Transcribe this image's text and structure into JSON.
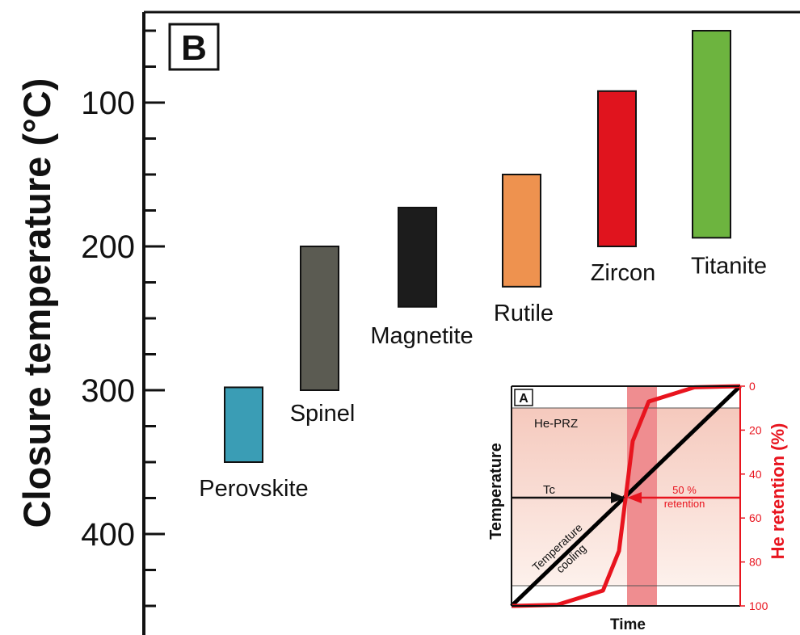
{
  "chart_data": [
    {
      "type": "bar",
      "panel_label": "B",
      "ylabel": "Closure temperature (°C)",
      "y_axis": "inverted",
      "ylim": [
        450,
        40
      ],
      "yticks": [
        100,
        200,
        300,
        400
      ],
      "minor_tick_step": 25,
      "grid": false,
      "series": [
        {
          "name": "Perovskite",
          "low": 298,
          "high": 350,
          "color": "#3a9db5"
        },
        {
          "name": "Spinel",
          "low": 200,
          "high": 300,
          "color": "#5b5b52"
        },
        {
          "name": "Magnetite",
          "low": 173,
          "high": 242,
          "color": "#1c1c1c"
        },
        {
          "name": "Rutile",
          "low": 150,
          "high": 228,
          "color": "#ee924f"
        },
        {
          "name": "Zircon",
          "low": 92,
          "high": 200,
          "color": "#e0141e"
        },
        {
          "name": "Titanite",
          "low": 50,
          "high": 194,
          "color": "#6db43f"
        }
      ]
    },
    {
      "type": "line",
      "panel_label": "A",
      "xlabel": "Time",
      "ylabel_left": "Temperature",
      "ylabel_right": "He retention (%)",
      "right_ylim": [
        0,
        100
      ],
      "right_yticks": [
        0,
        20,
        40,
        60,
        80,
        100
      ],
      "grid": false,
      "series": [
        {
          "name": "Temperature cooling",
          "color": "#000000",
          "x": [
            0,
            1
          ],
          "y": [
            100,
            0
          ]
        },
        {
          "name": "He retention",
          "color": "#e8141e",
          "x": [
            0.0,
            0.2,
            0.4,
            0.47,
            0.5,
            0.53,
            0.6,
            0.8,
            1.0
          ],
          "y": [
            100,
            99.5,
            93,
            75,
            50,
            25,
            7,
            0.5,
            0
          ]
        }
      ],
      "annotations": {
        "zone_label": "He-PRZ",
        "tc_label": "Tc",
        "retention_label": "50 %",
        "retention_label_2": "retention",
        "cooling_label": "Temperature",
        "cooling_label_2": "cooling"
      },
      "colors": {
        "axis_right": "#e8141e",
        "zone_fill": "#f7d4cc",
        "band_fill": "#f0868a"
      }
    }
  ]
}
